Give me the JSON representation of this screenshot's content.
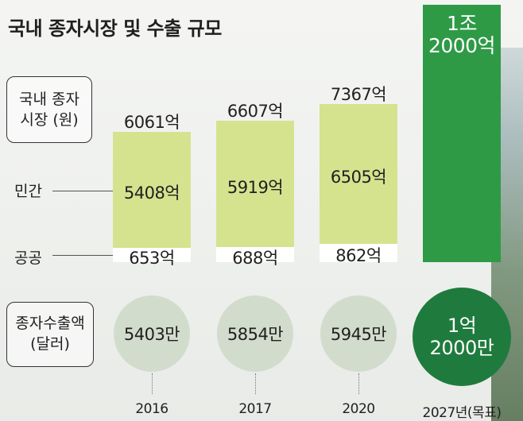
{
  "title": "국내 종자시장 및 수출 규모",
  "labels": {
    "market_line1": "국내 종자",
    "market_line2": "시장 (원)",
    "private": "민간",
    "public": "공공",
    "export_line1": "종자수출액",
    "export_line2": "(달러)"
  },
  "chart_data": {
    "type": "bar",
    "title": "국내 종자시장 및 수출 규모",
    "categories": [
      "2016",
      "2017",
      "2020",
      "2027년(목표)"
    ],
    "market": {
      "unit": "억 원",
      "total": [
        6061,
        6607,
        7367,
        12000
      ],
      "total_labels": [
        "6061억",
        "6607억",
        "7367억",
        "1조 2000억"
      ],
      "series": [
        {
          "name": "민간",
          "values": [
            5408,
            5919,
            6505,
            null
          ],
          "labels": [
            "5408억",
            "5919억",
            "6505억",
            ""
          ]
        },
        {
          "name": "공공",
          "values": [
            653,
            688,
            862,
            null
          ],
          "labels": [
            "653억",
            "688억",
            "862억",
            ""
          ]
        }
      ]
    },
    "exports": {
      "unit": "만 달러",
      "values": [
        5403,
        5854,
        5945,
        12000
      ],
      "labels": [
        "5403만",
        "5854만",
        "5945만",
        "1억 2000만"
      ]
    },
    "colors": {
      "private": "#d5e38f",
      "public": "#ffffff",
      "target_bar": "#2e9a46",
      "circle": "#d2dccc",
      "target_circle": "#1f7b3d"
    }
  },
  "target": {
    "market_line1": "1조",
    "market_line2": "2000억",
    "export_line1": "1억",
    "export_line2": "2000만"
  }
}
